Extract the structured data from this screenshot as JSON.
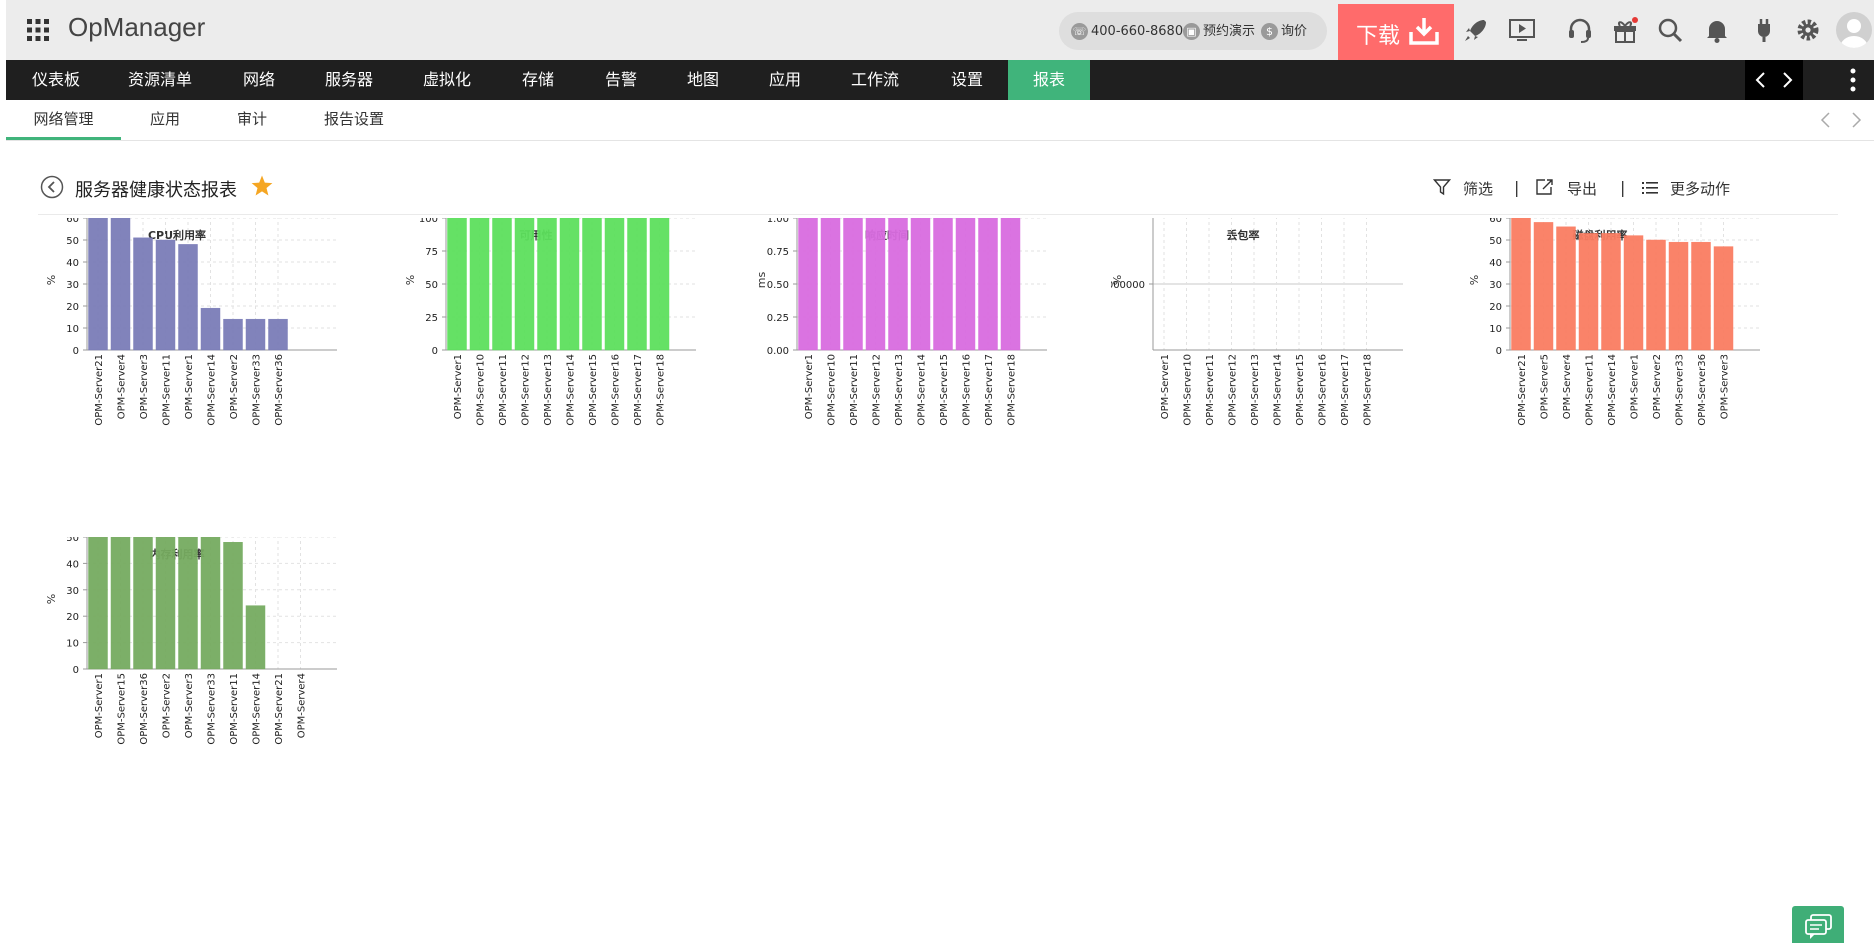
{
  "app": {
    "title": "OpManager"
  },
  "contact": {
    "phone": "400-660-8680",
    "demo": "预约演示",
    "quote": "询价"
  },
  "download": {
    "label": "下载"
  },
  "nav": {
    "items": [
      "仪表板",
      "资源清单",
      "网络",
      "服务器",
      "虚拟化",
      "存储",
      "告警",
      "地图",
      "应用",
      "工作流",
      "设置",
      "报表"
    ],
    "active": "报表"
  },
  "subnav": {
    "items": [
      "网络管理",
      "应用",
      "审计",
      "报告设置"
    ],
    "active": "网络管理"
  },
  "page": {
    "title": "服务器健康状态报表",
    "actions": {
      "filter": "筛选",
      "export": "导出",
      "more": "更多动作"
    },
    "separator": "|"
  },
  "colors": {
    "accent": "#40b47b",
    "download": "#ff6b6b",
    "star": "#f5a623"
  },
  "icons": [
    "apps-grid-icon",
    "phone-icon",
    "demo-icon",
    "dollar-icon",
    "download-icon",
    "rocket-icon",
    "video-icon",
    "headset-icon",
    "gift-icon",
    "search-icon",
    "bell-icon",
    "plug-icon",
    "gear-icon",
    "avatar-icon",
    "chevron-left-icon",
    "chevron-right-icon",
    "kebab-menu-icon",
    "back-icon",
    "star-icon",
    "filter-icon",
    "export-icon",
    "list-icon",
    "chat-icon"
  ],
  "chart_data": [
    {
      "type": "bar",
      "title": "CPU利用率",
      "ylabel": "%",
      "color": "#7b7db8",
      "ylim": [
        0,
        60
      ],
      "yticks": [
        "0",
        "10",
        "20",
        "30",
        "40",
        "50",
        "60"
      ],
      "categories": [
        "OPM-Server21",
        "OPM-Server4",
        "OPM-Server3",
        "OPM-Server11",
        "OPM-Server1",
        "OPM-Server14",
        "OPM-Server2",
        "OPM-Server33",
        "OPM-Server36"
      ],
      "values": [
        60,
        60,
        51,
        50,
        48,
        19,
        14,
        14,
        14
      ]
    },
    {
      "type": "bar",
      "title": "可用性",
      "ylabel": "%",
      "color": "#5de05d",
      "ylim": [
        0,
        100
      ],
      "yticks": [
        "0",
        "25",
        "50",
        "75",
        "100"
      ],
      "categories": [
        "OPM-Server1",
        "OPM-Server10",
        "OPM-Server11",
        "OPM-Server12",
        "OPM-Server13",
        "OPM-Server14",
        "OPM-Server15",
        "OPM-Server16",
        "OPM-Server17",
        "OPM-Server18"
      ],
      "values": [
        100,
        100,
        100,
        100,
        100,
        100,
        100,
        100,
        100,
        100
      ]
    },
    {
      "type": "bar",
      "title": "响应时间",
      "ylabel": "ms",
      "color": "#d96ce0",
      "ylim": [
        0,
        1
      ],
      "yticks": [
        "0.00",
        "0.25",
        "0.50",
        "0.75",
        "1.00"
      ],
      "categories": [
        "OPM-Server1",
        "OPM-Server10",
        "OPM-Server11",
        "OPM-Server12",
        "OPM-Server13",
        "OPM-Server14",
        "OPM-Server15",
        "OPM-Server16",
        "OPM-Server17",
        "OPM-Server18"
      ],
      "values": [
        1,
        1,
        1,
        1,
        1,
        1,
        1,
        1,
        1,
        1
      ]
    },
    {
      "type": "bar",
      "title": "丢包率",
      "ylabel": "%",
      "color": "#888888",
      "ylim": [
        -1,
        1
      ],
      "yticks": [
        "0.0000000"
      ],
      "ytick_values": [
        0
      ],
      "categories": [
        "OPM-Server1",
        "OPM-Server10",
        "OPM-Server11",
        "OPM-Server12",
        "OPM-Server13",
        "OPM-Server14",
        "OPM-Server15",
        "OPM-Server16",
        "OPM-Server17",
        "OPM-Server18"
      ],
      "values": [
        0,
        0,
        0,
        0,
        0,
        0,
        0,
        0,
        0,
        0
      ]
    },
    {
      "type": "bar",
      "title": "磁盘利用率",
      "ylabel": "%",
      "color": "#fa7d62",
      "ylim": [
        0,
        60
      ],
      "yticks": [
        "0",
        "10",
        "20",
        "30",
        "40",
        "50",
        "60"
      ],
      "categories": [
        "OPM-Server21",
        "OPM-Server5",
        "OPM-Server4",
        "OPM-Server11",
        "OPM-Server14",
        "OPM-Server1",
        "OPM-Server2",
        "OPM-Server33",
        "OPM-Server36",
        "OPM-Server3"
      ],
      "values": [
        60,
        58,
        56,
        53,
        53,
        52,
        50,
        49,
        49,
        47
      ]
    },
    {
      "type": "bar",
      "title": "内存利用率",
      "ylabel": "%",
      "color": "#76ab60",
      "ylim": [
        0,
        50
      ],
      "yticks": [
        "0",
        "10",
        "20",
        "30",
        "40",
        "50"
      ],
      "categories": [
        "OPM-Server1",
        "OPM-Server15",
        "OPM-Server36",
        "OPM-Server2",
        "OPM-Server3",
        "OPM-Server33",
        "OPM-Server11",
        "OPM-Server14",
        "OPM-Server21",
        "OPM-Server4"
      ],
      "values": [
        50,
        50,
        50,
        50,
        50,
        50,
        48,
        24,
        0,
        0
      ]
    }
  ]
}
